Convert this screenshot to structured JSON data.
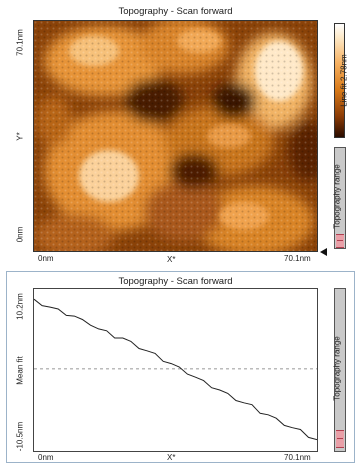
{
  "scan_panel": {
    "title": "Topography - Scan forward",
    "y_axis_label": "Y*",
    "y_top_label": "70.1nm",
    "y_bottom_label": "0nm",
    "x_axis_label": "X*",
    "x_left_label": "0nm",
    "x_right_label": "70.1nm",
    "colorbar_label": "Line fit 2.78nm",
    "range_label": "Topography range",
    "marker_icon": "triangle-left-icon"
  },
  "line_panel": {
    "title": "Topography - Scan forward",
    "y_axis_label": "Mean fit",
    "y_top_label": "10.2nm",
    "y_bottom_label": "-10.5nm",
    "x_axis_label": "X*",
    "x_left_label": "0nm",
    "x_right_label": "70.1nm",
    "range_label": "Topography range"
  },
  "chart_data": {
    "type": "line",
    "xlabel": "X*",
    "ylabel": "Mean fit",
    "xlim": [
      0,
      70.1
    ],
    "ylim": [
      -10.5,
      10.2
    ],
    "x_unit": "nm",
    "y_unit": "nm",
    "reference_line": 0,
    "series": [
      {
        "x": [
          0,
          2,
          4,
          6,
          8,
          10,
          12,
          14,
          16,
          18,
          20,
          22,
          24,
          26,
          28,
          30,
          32,
          34,
          36,
          38,
          40,
          42,
          44,
          46,
          48,
          50,
          52,
          54,
          56,
          58,
          60,
          62,
          64,
          66,
          68,
          70.1
        ],
        "values": [
          9.0,
          8.6,
          8.1,
          7.7,
          7.3,
          6.9,
          6.3,
          6.0,
          5.2,
          4.8,
          4.3,
          4.0,
          3.4,
          2.9,
          2.3,
          1.8,
          1.2,
          0.6,
          0.0,
          -0.5,
          -1.2,
          -1.8,
          -2.3,
          -2.9,
          -3.5,
          -4.0,
          -4.6,
          -5.0,
          -5.7,
          -6.2,
          -6.8,
          -7.3,
          -7.9,
          -8.3,
          -8.9,
          -9.5
        ]
      }
    ]
  }
}
